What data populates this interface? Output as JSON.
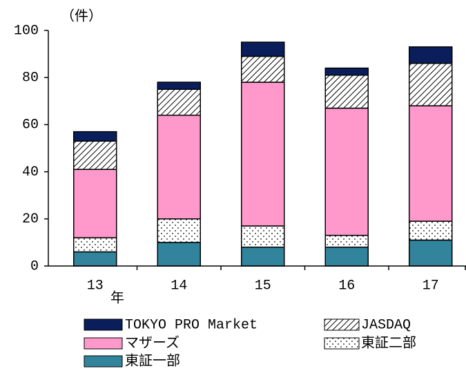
{
  "chart_data": {
    "type": "stacked_bar",
    "y_axis_label": "（件）",
    "x_annotation": "年",
    "categories": [
      "13",
      "14",
      "15",
      "16",
      "17"
    ],
    "series": [
      {
        "name": "東証一部",
        "color": "#31849b",
        "pattern": "solid",
        "values": [
          6,
          10,
          8,
          8,
          11
        ]
      },
      {
        "name": "東証二部",
        "color": "#ffffff",
        "pattern": "dots",
        "values": [
          6,
          10,
          9,
          5,
          8
        ]
      },
      {
        "name": "マザーズ",
        "color": "#ff99cc",
        "pattern": "solid",
        "values": [
          29,
          44,
          61,
          54,
          49
        ]
      },
      {
        "name": "JASDAQ",
        "color": "#ffffff",
        "pattern": "hatch",
        "values": [
          12,
          11,
          11,
          14,
          18
        ]
      },
      {
        "name": "TOKYO PRO Market",
        "color": "#0a1e5c",
        "pattern": "solid",
        "values": [
          4,
          3,
          6,
          3,
          7
        ]
      }
    ],
    "ylim": [
      0,
      100
    ],
    "yticks": [
      0,
      20,
      40,
      60,
      80,
      100
    ],
    "grid": false
  }
}
